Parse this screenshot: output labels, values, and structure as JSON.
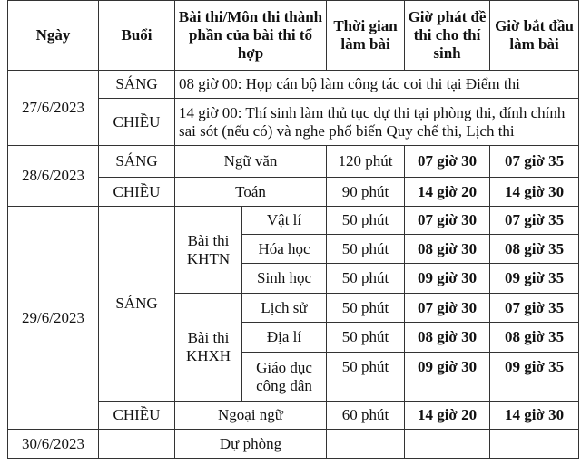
{
  "header": {
    "date": "Ngày",
    "session": "Buổi",
    "subject": "Bài thi/Môn thi thành phần của bài thi tổ hợp",
    "duration": "Thời gian làm bài",
    "distribute_time": "Giờ phát đề thi cho thí sinh",
    "start_time": "Giờ bắt đầu làm bài"
  },
  "day1": {
    "date": "27/6/2023",
    "morning": {
      "session": "SÁNG",
      "note": "08 giờ 00: Họp cán bộ làm công tác coi thi tại Điểm thi"
    },
    "afternoon": {
      "session": "CHIỀU",
      "note": "14 giờ 00: Thí sinh làm thủ tục dự thi tại phòng thi, đính chính sai sót (nếu có) và nghe phổ biến Quy chế thi, Lịch thi"
    }
  },
  "day2": {
    "date": "28/6/2023",
    "morning": {
      "session": "SÁNG",
      "subject": "Ngữ văn",
      "duration": "120 phút",
      "distribute": "07 giờ 30",
      "start": "07 giờ 35"
    },
    "afternoon": {
      "session": "CHIỀU",
      "subject": "Toán",
      "duration": "90 phút",
      "distribute": "14 giờ 20",
      "start": "14 giờ 30"
    }
  },
  "day3": {
    "date": "29/6/2023",
    "morning_session": "SÁNG",
    "khtn": "Bài thi KHTN",
    "khxh": "Bài thi KHXH",
    "subjects": [
      {
        "name": "Vật lí",
        "duration": "50 phút",
        "distribute": "07 giờ 30",
        "start": "07 giờ 35"
      },
      {
        "name": "Hóa học",
        "duration": "50 phút",
        "distribute": "08 giờ 30",
        "start": "08 giờ 35"
      },
      {
        "name": "Sinh học",
        "duration": "50 phút",
        "distribute": "09 giờ 30",
        "start": "09 giờ 35"
      },
      {
        "name": "Lịch sử",
        "duration": "50 phút",
        "distribute": "07 giờ 30",
        "start": "07 giờ 35"
      },
      {
        "name": "Địa lí",
        "duration": "50 phút",
        "distribute": "08 giờ 30",
        "start": "08 giờ 35"
      },
      {
        "name": "Giáo dục công dân",
        "duration": "50 phút",
        "distribute": "09 giờ 30",
        "start": "09 giờ 35"
      }
    ],
    "afternoon": {
      "session": "CHIỀU",
      "subject": "Ngoại ngữ",
      "duration": "60 phút",
      "distribute": "14 giờ 20",
      "start": "14 giờ 30"
    }
  },
  "day4": {
    "date": "30/6/2023",
    "subject": "Dự phòng"
  }
}
